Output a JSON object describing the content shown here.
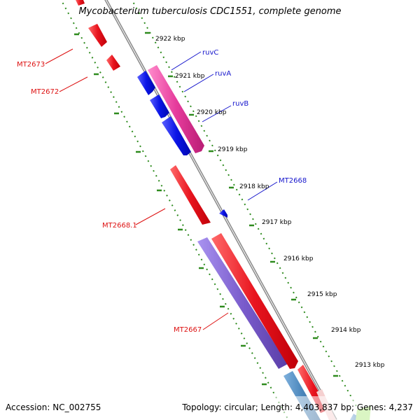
{
  "title": "Mycobacterium tuberculosis CDC1551, complete genome",
  "footer": {
    "accession": "Accession: NC_002755",
    "summary": "Topology: circular; Length: 4,403,837 bp; Genes: 4,237"
  },
  "colors": {
    "backbone": "#888888",
    "tick_ring": "#2e8b1e",
    "gene_red": "#e8141e",
    "gene_blue": "#0a14e6",
    "gene_pink": "#e63c9c",
    "gene_purple": "#7a5ccc",
    "gene_steel": "#4a86bb",
    "label_red": "#dd1111",
    "label_blue": "#1515cc"
  },
  "scale_labels": [
    {
      "text": "2922 kbp"
    },
    {
      "text": "2921 kbp"
    },
    {
      "text": "2920 kbp"
    },
    {
      "text": "2919 kbp"
    },
    {
      "text": "2918 kbp"
    },
    {
      "text": "2917 kbp"
    },
    {
      "text": "2916 kbp"
    },
    {
      "text": "2915 kbp"
    },
    {
      "text": "2914 kbp"
    },
    {
      "text": "2913 kbp"
    }
  ],
  "gene_labels": [
    {
      "text": "MT2673",
      "color": "red"
    },
    {
      "text": "MT2672",
      "color": "red"
    },
    {
      "text": "ruvC",
      "color": "blue"
    },
    {
      "text": "ruvA",
      "color": "blue"
    },
    {
      "text": "ruvB",
      "color": "blue"
    },
    {
      "text": "MT2668",
      "color": "blue"
    },
    {
      "text": "MT2668.1",
      "color": "red"
    },
    {
      "text": "MT2667",
      "color": "red"
    }
  ]
}
